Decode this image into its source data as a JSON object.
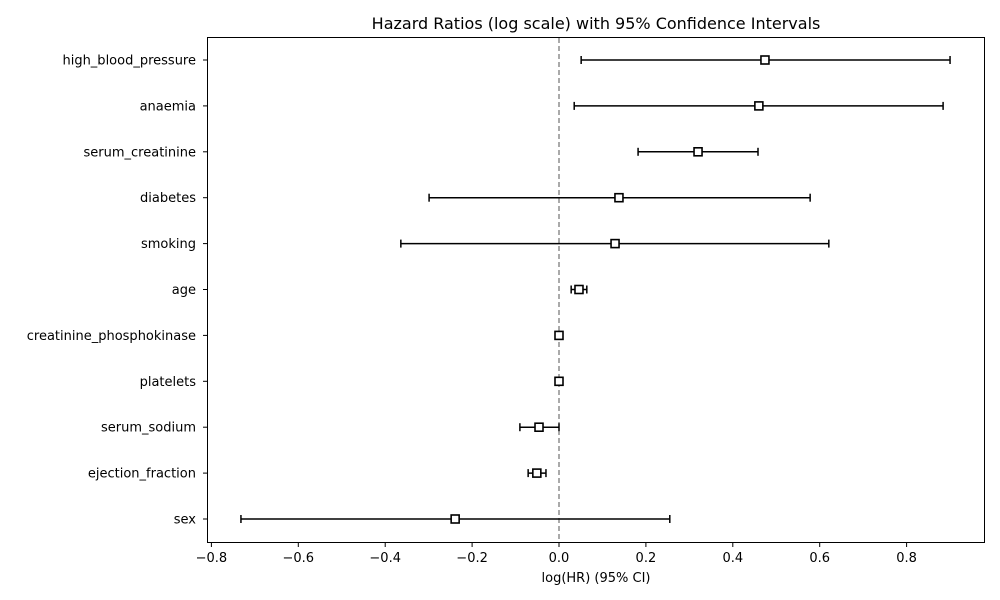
{
  "chart_data": {
    "type": "forest",
    "title": "Hazard Ratios (log scale) with 95% Confidence Intervals",
    "xlabel": "log(HR) (95% CI)",
    "ylabel": "",
    "xlim": [
      -0.81,
      0.98
    ],
    "xticks": [
      -0.8,
      -0.6,
      -0.4,
      -0.2,
      0.0,
      0.2,
      0.4,
      0.6,
      0.8
    ],
    "xtick_labels": [
      "−0.8",
      "−0.6",
      "−0.4",
      "−0.2",
      "0.0",
      "0.2",
      "0.4",
      "0.6",
      "0.8"
    ],
    "reference_line": {
      "x": 0.0,
      "style": "dashed",
      "color": "#555555"
    },
    "grid": false,
    "legend": null,
    "categories": [
      "high_blood_pressure",
      "anaemia",
      "serum_creatinine",
      "diabetes",
      "smoking",
      "age",
      "creatinine_phosphokinase",
      "platelets",
      "serum_sodium",
      "ejection_fraction",
      "sex"
    ],
    "series": [
      {
        "name": "log(HR)",
        "values": [
          0.474,
          0.46,
          0.32,
          0.138,
          0.129,
          0.046,
          0.0,
          0.0,
          -0.046,
          -0.051,
          -0.239
        ],
        "ci_lower": [
          0.051,
          0.035,
          0.182,
          -0.299,
          -0.364,
          0.028,
          -0.001,
          -0.001,
          -0.09,
          -0.071,
          -0.732
        ],
        "ci_upper": [
          0.9,
          0.884,
          0.458,
          0.578,
          0.621,
          0.064,
          0.001,
          0.001,
          0.0,
          -0.03,
          0.255
        ]
      }
    ],
    "marker": "square-open",
    "color": "#000000"
  }
}
